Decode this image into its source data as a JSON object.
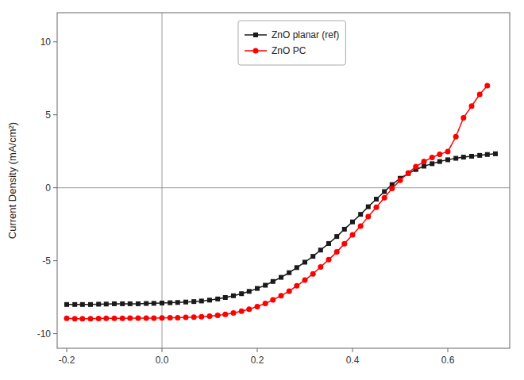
{
  "chart_data": {
    "type": "line",
    "ylabel": "Current Density (mA/cm²)",
    "xlim": [
      -0.22,
      0.73
    ],
    "ylim": [
      -11.0,
      12.0
    ],
    "xticks": [
      -0.2,
      {
        "value": 0.0,
        "label": "0.0"
      },
      0.2,
      0.4,
      0.6
    ],
    "yticks": [
      -10,
      -5,
      0,
      5,
      10
    ],
    "grid": false,
    "legend": "upper center",
    "series": [
      {
        "name": "ZnO planar (ref)",
        "color": "#1a1a1a",
        "marker": "square",
        "x": [
          -0.2,
          -0.183,
          -0.167,
          -0.15,
          -0.133,
          -0.117,
          -0.1,
          -0.083,
          -0.067,
          -0.05,
          -0.033,
          -0.017,
          0.0,
          0.017,
          0.033,
          0.05,
          0.067,
          0.083,
          0.1,
          0.117,
          0.133,
          0.15,
          0.167,
          0.183,
          0.2,
          0.217,
          0.233,
          0.25,
          0.267,
          0.283,
          0.3,
          0.317,
          0.333,
          0.35,
          0.367,
          0.383,
          0.4,
          0.417,
          0.433,
          0.45,
          0.467,
          0.483,
          0.5,
          0.517,
          0.533,
          0.55,
          0.567,
          0.583,
          0.6,
          0.617,
          0.633,
          0.65,
          0.667,
          0.683,
          0.7
        ],
        "values": [
          -8.0,
          -8.0,
          -8.0,
          -8.0,
          -7.98,
          -7.97,
          -7.95,
          -7.95,
          -7.95,
          -7.95,
          -7.93,
          -7.92,
          -7.9,
          -7.88,
          -7.86,
          -7.83,
          -7.8,
          -7.76,
          -7.7,
          -7.62,
          -7.52,
          -7.4,
          -7.26,
          -7.1,
          -6.9,
          -6.68,
          -6.42,
          -6.14,
          -5.82,
          -5.47,
          -5.1,
          -4.7,
          -4.27,
          -3.82,
          -3.34,
          -2.84,
          -2.34,
          -1.82,
          -1.3,
          -0.78,
          -0.26,
          0.22,
          0.65,
          0.98,
          1.25,
          1.48,
          1.65,
          1.8,
          1.92,
          2.02,
          2.1,
          2.16,
          2.22,
          2.28,
          2.33
        ]
      },
      {
        "name": "ZnO PC",
        "color": "#ff0000",
        "marker": "circle",
        "x": [
          -0.2,
          -0.183,
          -0.167,
          -0.15,
          -0.133,
          -0.117,
          -0.1,
          -0.083,
          -0.067,
          -0.05,
          -0.033,
          -0.017,
          0.0,
          0.017,
          0.033,
          0.05,
          0.067,
          0.083,
          0.1,
          0.117,
          0.133,
          0.15,
          0.167,
          0.183,
          0.2,
          0.217,
          0.233,
          0.25,
          0.267,
          0.283,
          0.3,
          0.317,
          0.333,
          0.35,
          0.367,
          0.383,
          0.4,
          0.417,
          0.433,
          0.45,
          0.467,
          0.483,
          0.5,
          0.517,
          0.533,
          0.55,
          0.567,
          0.583,
          0.6,
          0.617,
          0.633,
          0.65,
          0.667,
          0.683
        ],
        "values": [
          -8.95,
          -8.97,
          -8.97,
          -8.97,
          -8.96,
          -8.95,
          -8.95,
          -8.95,
          -8.94,
          -8.94,
          -8.93,
          -8.93,
          -8.92,
          -8.91,
          -8.9,
          -8.88,
          -8.86,
          -8.84,
          -8.8,
          -8.75,
          -8.68,
          -8.58,
          -8.46,
          -8.32,
          -8.14,
          -7.93,
          -7.68,
          -7.4,
          -7.08,
          -6.72,
          -6.33,
          -5.9,
          -5.43,
          -4.93,
          -4.4,
          -3.83,
          -3.23,
          -2.62,
          -1.98,
          -1.33,
          -0.68,
          -0.05,
          0.52,
          1.02,
          1.45,
          1.8,
          2.08,
          2.3,
          2.48,
          3.5,
          4.8,
          5.6,
          6.4,
          7.0
        ]
      }
    ]
  }
}
